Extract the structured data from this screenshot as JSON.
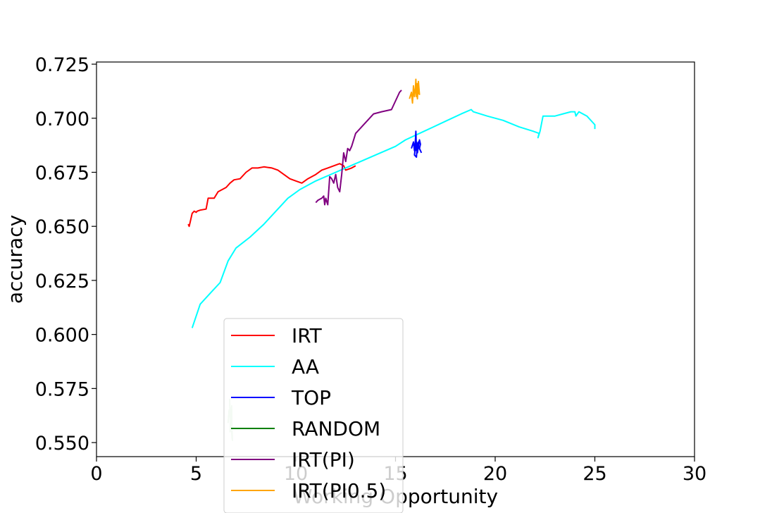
{
  "chart_data": {
    "type": "line",
    "xlabel": "Working Opportunity",
    "ylabel": "accuracy",
    "xlim": [
      0,
      30
    ],
    "ylim": [
      0.5435,
      0.726
    ],
    "xticks": [
      0,
      5,
      10,
      15,
      20,
      25,
      30
    ],
    "xtick_labels": [
      "0",
      "5",
      "10",
      "15",
      "20",
      "25",
      "30"
    ],
    "yticks": [
      0.55,
      0.575,
      0.6,
      0.625,
      0.65,
      0.675,
      0.7,
      0.725
    ],
    "ytick_labels": [
      "0.550",
      "0.575",
      "0.600",
      "0.625",
      "0.650",
      "0.675",
      "0.700",
      "0.725"
    ],
    "grid": false,
    "legend_position": "lower-left",
    "series": [
      {
        "name": "IRT",
        "color": "#ff0000",
        "x": [
          4.6,
          4.65,
          4.7,
          4.8,
          4.9,
          5.0,
          5.05,
          5.2,
          5.5,
          5.6,
          5.9,
          6.1,
          6.5,
          6.7,
          6.9,
          7.2,
          7.5,
          7.8,
          8.1,
          8.4,
          8.8,
          9.1,
          9.4,
          9.7,
          10.0,
          10.3,
          10.6,
          11.0,
          11.3,
          11.6,
          11.9,
          12.2,
          12.4,
          12.5,
          12.8,
          13.0
        ],
        "y": [
          0.651,
          0.65,
          0.652,
          0.656,
          0.657,
          0.6565,
          0.657,
          0.6575,
          0.658,
          0.663,
          0.663,
          0.666,
          0.668,
          0.67,
          0.6715,
          0.672,
          0.675,
          0.677,
          0.677,
          0.6775,
          0.677,
          0.676,
          0.674,
          0.672,
          0.671,
          0.67,
          0.672,
          0.674,
          0.676,
          0.677,
          0.678,
          0.679,
          0.678,
          0.676,
          0.677,
          0.678
        ]
      },
      {
        "name": "AA",
        "color": "#00ffff",
        "x": [
          4.8,
          5.2,
          5.7,
          6.2,
          6.6,
          7.0,
          7.7,
          8.4,
          9.0,
          9.6,
          10.2,
          11.0,
          12.0,
          13.0,
          14.0,
          15.0,
          15.5,
          16.2,
          16.9,
          17.6,
          18.3,
          18.8,
          18.9,
          19.6,
          20.4,
          21.2,
          21.9,
          22.2,
          22.15,
          22.25,
          22.4,
          22.6,
          23.0,
          23.4,
          23.8,
          24.0,
          24.05,
          24.2,
          24.6,
          25.0,
          25.0
        ],
        "y": [
          0.603,
          0.614,
          0.619,
          0.624,
          0.634,
          0.64,
          0.645,
          0.651,
          0.657,
          0.663,
          0.667,
          0.671,
          0.675,
          0.679,
          0.683,
          0.687,
          0.69,
          0.693,
          0.696,
          0.699,
          0.702,
          0.704,
          0.703,
          0.701,
          0.699,
          0.696,
          0.694,
          0.693,
          0.691,
          0.694,
          0.701,
          0.701,
          0.701,
          0.702,
          0.703,
          0.703,
          0.701,
          0.703,
          0.701,
          0.697,
          0.695
        ]
      },
      {
        "name": "TOP",
        "color": "#0000ff",
        "x": [
          15.8,
          15.9,
          15.95,
          16.0,
          16.02,
          16.05,
          16.0,
          15.95,
          16.05,
          16.1,
          16.0,
          16.1,
          16.15,
          16.1,
          16.2,
          16.25,
          16.2,
          16.3
        ],
        "y": [
          0.686,
          0.689,
          0.685,
          0.69,
          0.694,
          0.685,
          0.687,
          0.683,
          0.682,
          0.688,
          0.69,
          0.686,
          0.689,
          0.684,
          0.69,
          0.688,
          0.686,
          0.684
        ]
      },
      {
        "name": "RANDOM",
        "color": "#008000",
        "opacity": 0.22,
        "x": [
          6.6,
          6.65,
          6.7,
          6.68,
          6.72,
          6.75,
          6.7,
          6.78,
          6.8,
          6.76,
          6.82,
          6.8
        ],
        "y": [
          0.559,
          0.565,
          0.562,
          0.57,
          0.557,
          0.566,
          0.555,
          0.567,
          0.552,
          0.56,
          0.551,
          0.556
        ]
      },
      {
        "name": "IRT(PI)",
        "color": "#800080",
        "x": [
          11.0,
          11.1,
          11.2,
          11.3,
          11.4,
          11.45,
          11.5,
          11.6,
          11.7,
          11.8,
          11.9,
          12.0,
          12.1,
          12.2,
          12.25,
          12.3,
          12.35,
          12.4,
          12.5,
          12.6,
          12.7,
          12.8,
          13.0,
          13.3,
          13.6,
          13.9,
          14.3,
          14.8,
          15.2,
          15.3
        ],
        "y": [
          0.661,
          0.662,
          0.6625,
          0.663,
          0.664,
          0.66,
          0.663,
          0.66,
          0.673,
          0.672,
          0.67,
          0.674,
          0.668,
          0.666,
          0.67,
          0.674,
          0.679,
          0.684,
          0.68,
          0.686,
          0.685,
          0.687,
          0.693,
          0.696,
          0.699,
          0.702,
          0.703,
          0.704,
          0.712,
          0.713
        ]
      },
      {
        "name": "IRT(PI0.5)",
        "color": "#ffa500",
        "x": [
          15.7,
          15.8,
          15.85,
          15.9,
          15.95,
          16.0,
          16.02,
          16.05,
          16.08,
          16.1,
          16.12,
          16.15,
          16.2,
          16.05
        ],
        "y": [
          0.709,
          0.712,
          0.707,
          0.715,
          0.71,
          0.714,
          0.718,
          0.71,
          0.716,
          0.709,
          0.713,
          0.717,
          0.711,
          0.714
        ]
      }
    ]
  }
}
